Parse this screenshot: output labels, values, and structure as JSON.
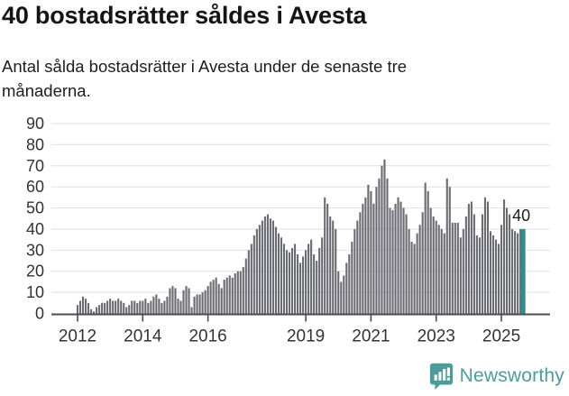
{
  "header": {
    "title": "40 bostadsrätter såldes i Avesta",
    "subtitle": "Antal sålda bostadsrätter i Avesta under de senaste tre månaderna."
  },
  "chart_data": {
    "type": "bar",
    "title": "40 bostadsrätter såldes i Avesta",
    "subtitle": "Antal sålda bostadsrätter i Avesta under de senaste tre månaderna.",
    "xlabel": "",
    "ylabel": "",
    "x_monthly_start": "2012-01",
    "x_monthly_end": "2025-09",
    "frequency": "monthly (rolling 3-month sales count)",
    "values": [
      4,
      6,
      8,
      7,
      5,
      2,
      1,
      3,
      4,
      5,
      5,
      6,
      7,
      6,
      6,
      7,
      6,
      5,
      3,
      4,
      6,
      6,
      5,
      6,
      6,
      7,
      5,
      6,
      8,
      9,
      7,
      5,
      6,
      8,
      12,
      13,
      12,
      7,
      6,
      11,
      13,
      12,
      3,
      8,
      9,
      9,
      10,
      11,
      13,
      15,
      16,
      17,
      14,
      12,
      16,
      17,
      18,
      17,
      19,
      20,
      20,
      22,
      26,
      30,
      33,
      37,
      40,
      42,
      44,
      46,
      47,
      45,
      44,
      41,
      38,
      36,
      33,
      30,
      29,
      31,
      33,
      28,
      24,
      27,
      30,
      33,
      35,
      28,
      25,
      31,
      36,
      55,
      52,
      46,
      44,
      40,
      20,
      15,
      18,
      24,
      28,
      34,
      40,
      44,
      48,
      52,
      55,
      61,
      58,
      52,
      60,
      64,
      70,
      73,
      64,
      50,
      49,
      52,
      55,
      53,
      50,
      47,
      40,
      34,
      33,
      38,
      42,
      48,
      62,
      58,
      50,
      46,
      44,
      42,
      40,
      38,
      64,
      60,
      43,
      43,
      43,
      36,
      40,
      46,
      52,
      53,
      47,
      37,
      36,
      47,
      55,
      53,
      39,
      37,
      35,
      33,
      42,
      54,
      50,
      47,
      40,
      39,
      38,
      40,
      40
    ],
    "highlight_last_value": 40,
    "annotation_label": "40",
    "ylim": [
      0,
      90
    ],
    "yticks": [
      0,
      10,
      20,
      30,
      40,
      50,
      60,
      70,
      80,
      90
    ],
    "xticks": [
      2012,
      2014,
      2016,
      2019,
      2021,
      2023,
      2025
    ],
    "grid": "horizontal",
    "legend": "none",
    "colors": {
      "bar": "#6b6b72",
      "highlight": "#2f8e8e",
      "grid": "#e4e4e4",
      "axis": "#4d4d4d",
      "tick_label": "#333333",
      "annotation": "#1d1d1d"
    }
  },
  "footer": {
    "brand": "Newsworthy",
    "logo_color": "#4a9d9a"
  }
}
